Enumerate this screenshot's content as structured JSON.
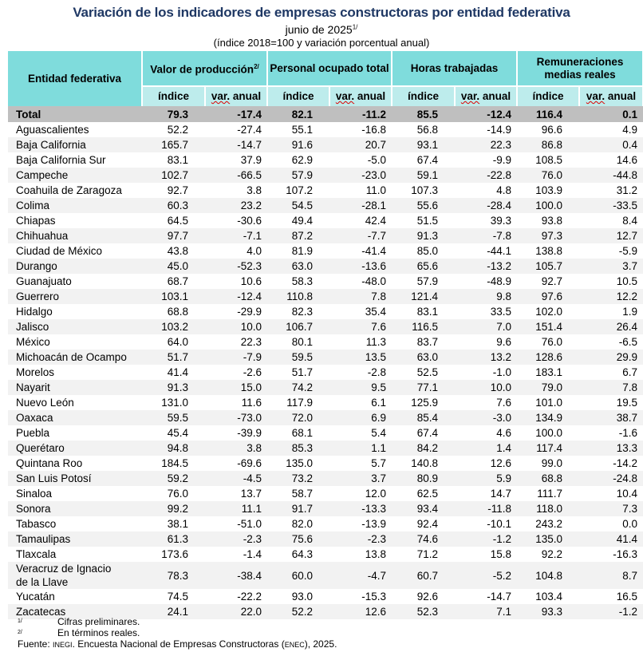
{
  "title": "Variación de los indicadores de empresas constructoras por entidad federativa",
  "subtitle": "junio de 2025",
  "subtitle_note": "1/",
  "subtitle2": "(índice 2018=100 y variación porcentual anual)",
  "headers": {
    "entity": "Entidad federativa",
    "groups": [
      "Valor de producción",
      "Personal ocupado total",
      "Horas trabajadas",
      "Remuneraciones medias reales"
    ],
    "group0_note": "2/",
    "sub_index": "índice",
    "sub_var": "var. anual"
  },
  "rows": [
    {
      "name": "Total",
      "v": [
        "79.3",
        "-17.4",
        "82.1",
        "-11.2",
        "85.5",
        "-12.4",
        "116.4",
        "0.1"
      ]
    },
    {
      "name": "Aguascalientes",
      "v": [
        "52.2",
        "-27.4",
        "55.1",
        "-16.8",
        "56.8",
        "-14.9",
        "96.6",
        "4.9"
      ]
    },
    {
      "name": "Baja California",
      "v": [
        "165.7",
        "-14.7",
        "91.6",
        "20.7",
        "93.1",
        "22.3",
        "86.8",
        "0.4"
      ]
    },
    {
      "name": "Baja California Sur",
      "v": [
        "83.1",
        "37.9",
        "62.9",
        "-5.0",
        "67.4",
        "-9.9",
        "108.5",
        "14.6"
      ]
    },
    {
      "name": "Campeche",
      "v": [
        "102.7",
        "-66.5",
        "57.9",
        "-23.0",
        "59.1",
        "-22.8",
        "76.0",
        "-44.8"
      ]
    },
    {
      "name": "Coahuila de Zaragoza",
      "v": [
        "92.7",
        "3.8",
        "107.2",
        "11.0",
        "107.3",
        "4.8",
        "103.9",
        "31.2"
      ]
    },
    {
      "name": "Colima",
      "v": [
        "60.3",
        "23.2",
        "54.5",
        "-28.1",
        "55.6",
        "-28.4",
        "100.0",
        "-33.5"
      ]
    },
    {
      "name": "Chiapas",
      "v": [
        "64.5",
        "-30.6",
        "49.4",
        "42.4",
        "51.5",
        "39.3",
        "93.8",
        "8.4"
      ]
    },
    {
      "name": "Chihuahua",
      "v": [
        "97.7",
        "-7.1",
        "87.2",
        "-7.7",
        "91.3",
        "-7.8",
        "97.3",
        "12.7"
      ]
    },
    {
      "name": "Ciudad de México",
      "v": [
        "43.8",
        "4.0",
        "81.9",
        "-41.4",
        "85.0",
        "-44.1",
        "138.8",
        "-5.9"
      ]
    },
    {
      "name": "Durango",
      "v": [
        "45.0",
        "-52.3",
        "63.0",
        "-13.6",
        "65.6",
        "-13.2",
        "105.7",
        "3.7"
      ]
    },
    {
      "name": "Guanajuato",
      "v": [
        "68.7",
        "10.6",
        "58.3",
        "-48.0",
        "57.9",
        "-48.9",
        "92.7",
        "10.5"
      ]
    },
    {
      "name": "Guerrero",
      "v": [
        "103.1",
        "-12.4",
        "110.8",
        "7.8",
        "121.4",
        "9.8",
        "97.6",
        "12.2"
      ]
    },
    {
      "name": "Hidalgo",
      "v": [
        "68.8",
        "-29.9",
        "82.3",
        "35.4",
        "83.1",
        "33.5",
        "102.0",
        "1.9"
      ]
    },
    {
      "name": "Jalisco",
      "v": [
        "103.2",
        "10.0",
        "106.7",
        "7.6",
        "116.5",
        "7.0",
        "151.4",
        "26.4"
      ]
    },
    {
      "name": "México",
      "v": [
        "64.0",
        "22.3",
        "80.1",
        "11.3",
        "83.7",
        "9.6",
        "76.0",
        "-6.5"
      ]
    },
    {
      "name": "Michoacán de Ocampo",
      "v": [
        "51.7",
        "-7.9",
        "59.5",
        "13.5",
        "63.0",
        "13.2",
        "128.6",
        "29.9"
      ]
    },
    {
      "name": "Morelos",
      "v": [
        "41.4",
        "-2.6",
        "51.7",
        "-2.8",
        "52.5",
        "-1.0",
        "183.1",
        "6.7"
      ]
    },
    {
      "name": "Nayarit",
      "v": [
        "91.3",
        "15.0",
        "74.2",
        "9.5",
        "77.1",
        "10.0",
        "79.0",
        "7.8"
      ]
    },
    {
      "name": "Nuevo León",
      "v": [
        "131.0",
        "11.6",
        "117.9",
        "6.1",
        "125.9",
        "7.6",
        "101.0",
        "19.5"
      ]
    },
    {
      "name": "Oaxaca",
      "v": [
        "59.5",
        "-73.0",
        "72.0",
        "6.9",
        "85.4",
        "-3.0",
        "134.9",
        "38.7"
      ]
    },
    {
      "name": "Puebla",
      "v": [
        "45.4",
        "-39.9",
        "68.1",
        "5.4",
        "67.4",
        "4.6",
        "100.0",
        "-1.6"
      ]
    },
    {
      "name": "Querétaro",
      "v": [
        "94.8",
        "3.8",
        "85.3",
        "1.1",
        "84.2",
        "1.4",
        "117.4",
        "13.3"
      ]
    },
    {
      "name": "Quintana Roo",
      "v": [
        "184.5",
        "-69.6",
        "135.0",
        "5.7",
        "140.8",
        "12.6",
        "99.0",
        "-14.2"
      ]
    },
    {
      "name": "San Luis Potosí",
      "v": [
        "59.2",
        "-4.5",
        "73.2",
        "3.7",
        "80.9",
        "5.9",
        "68.8",
        "-24.8"
      ]
    },
    {
      "name": "Sinaloa",
      "v": [
        "76.0",
        "13.7",
        "58.7",
        "12.0",
        "62.5",
        "14.7",
        "111.7",
        "10.4"
      ]
    },
    {
      "name": "Sonora",
      "v": [
        "99.2",
        "11.1",
        "91.7",
        "-13.3",
        "93.4",
        "-11.8",
        "118.0",
        "7.3"
      ]
    },
    {
      "name": "Tabasco",
      "v": [
        "38.1",
        "-51.0",
        "82.0",
        "-13.9",
        "92.4",
        "-10.1",
        "243.2",
        "0.0"
      ]
    },
    {
      "name": "Tamaulipas",
      "v": [
        "61.3",
        "-2.3",
        "75.6",
        "-2.3",
        "74.6",
        "-1.2",
        "135.0",
        "41.4"
      ]
    },
    {
      "name": "Tlaxcala",
      "v": [
        "173.6",
        "-1.4",
        "64.3",
        "13.8",
        "71.2",
        "15.8",
        "92.2",
        "-16.3"
      ]
    },
    {
      "name": "Veracruz de Ignacio de la Llave",
      "v": [
        "78.3",
        "-38.4",
        "60.0",
        "-4.7",
        "60.7",
        "-5.2",
        "104.8",
        "8.7"
      ]
    },
    {
      "name": "Yucatán",
      "v": [
        "74.5",
        "-22.2",
        "93.0",
        "-15.3",
        "92.6",
        "-14.7",
        "103.4",
        "16.5"
      ]
    },
    {
      "name": "Zacatecas",
      "v": [
        "24.1",
        "22.0",
        "52.2",
        "12.6",
        "52.3",
        "7.1",
        "93.3",
        "-1.2"
      ]
    }
  ],
  "notes": [
    {
      "key": "1/",
      "text": "Cifras preliminares."
    },
    {
      "key": "2/",
      "text": "En términos reales."
    }
  ],
  "source": {
    "label": "Fuente:",
    "org": "INEGI",
    "text": ". Encuesta Nacional de Empresas Constructoras (",
    "abbr": "ENEC",
    "end": "), 2025."
  }
}
